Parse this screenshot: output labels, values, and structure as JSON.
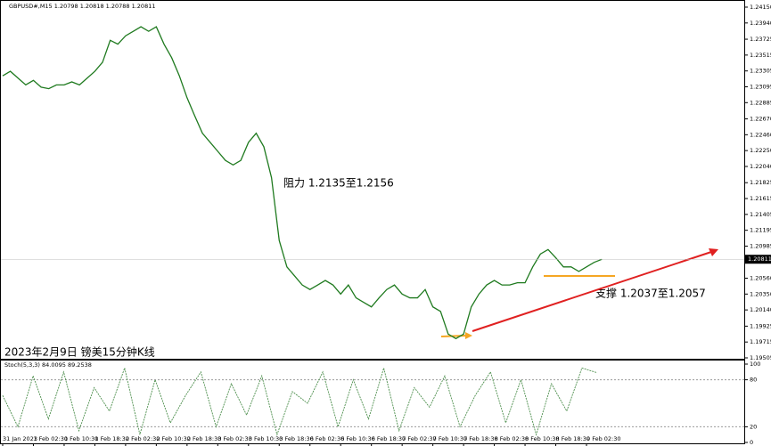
{
  "header": "GBPUSD#,M15  1.20798 1.20818 1.20788 1.20811",
  "annotations": [
    "阻力 1.2135至1.2156",
    "支撑 1.2037至1.2057",
    "2023年2月9日 镑美15分钟K线"
  ],
  "chart_data": [
    {
      "type": "line",
      "x_labels": [
        "31 Jan 2023",
        "1 Feb 02:30",
        "1 Feb 10:30",
        "1 Feb 18:30",
        "2 Feb 02:30",
        "2 Feb 10:30",
        "2 Feb 18:30",
        "3 Feb 02:30",
        "3 Feb 10:30",
        "3 Feb 18:30",
        "6 Feb 02:30",
        "6 Feb 10:30",
        "6 Feb 18:30",
        "7 Feb 02:30",
        "7 Feb 10:30",
        "7 Feb 18:30",
        "8 Feb 02:30",
        "8 Feb 10:30",
        "8 Feb 18:30",
        "9 Feb 02:30"
      ],
      "series": [
        {
          "name": "GBPUSD#",
          "color": "#1f7a1f",
          "values": [
            1.2324,
            1.233,
            1.2321,
            1.2312,
            1.2318,
            1.2309,
            1.2307,
            1.2312,
            1.2312,
            1.2316,
            1.2312,
            1.2321,
            1.233,
            1.2342,
            1.2371,
            1.2366,
            1.2377,
            1.2383,
            1.2389,
            1.2383,
            1.2389,
            1.2366,
            1.2348,
            1.2324,
            1.2295,
            1.2271,
            1.2248,
            1.2236,
            1.2224,
            1.2212,
            1.2206,
            1.2212,
            1.2236,
            1.2248,
            1.223,
            1.2189,
            1.2106,
            1.2071,
            1.2059,
            1.2047,
            1.2041,
            1.2047,
            1.2053,
            1.2047,
            1.2035,
            1.2047,
            1.203,
            1.2024,
            1.2018,
            1.203,
            1.2041,
            1.2047,
            1.2035,
            1.203,
            1.203,
            1.2041,
            1.2018,
            1.2012,
            1.1982,
            1.1976,
            1.1982,
            1.2018,
            1.2035,
            1.2047,
            1.2053,
            1.2047,
            1.2047,
            1.205,
            1.205,
            1.2071,
            1.2088,
            1.2094,
            1.2083,
            1.2071,
            1.2071,
            1.2065,
            1.2071,
            1.2077,
            1.2081
          ]
        }
      ],
      "current_price": {
        "value": 1.20811,
        "label": "1.20811"
      },
      "ylim": [
        1.19505,
        1.2415
      ],
      "yticks": [
        {
          "value": 1.2415,
          "label": "1.24150"
        },
        {
          "value": 1.2394,
          "label": "1.23940"
        },
        {
          "value": 1.23725,
          "label": "1.23725"
        },
        {
          "value": 1.23515,
          "label": "1.23515"
        },
        {
          "value": 1.23305,
          "label": "1.23305"
        },
        {
          "value": 1.23095,
          "label": "1.23095"
        },
        {
          "value": 1.22885,
          "label": "1.22885"
        },
        {
          "value": 1.2267,
          "label": "1.22670"
        },
        {
          "value": 1.2246,
          "label": "1.22460"
        },
        {
          "value": 1.2225,
          "label": "1.22250"
        },
        {
          "value": 1.2204,
          "label": "1.22040"
        },
        {
          "value": 1.21825,
          "label": "1.21825"
        },
        {
          "value": 1.21615,
          "label": "1.21615"
        },
        {
          "value": 1.21405,
          "label": "1.21405"
        },
        {
          "value": 1.21195,
          "label": "1.21195"
        },
        {
          "value": 1.20985,
          "label": "1.20985"
        },
        {
          "value": 1.2056,
          "label": "1.20560"
        },
        {
          "value": 1.2035,
          "label": "1.20350"
        },
        {
          "value": 1.2014,
          "label": "1.20140"
        },
        {
          "value": 1.19925,
          "label": "1.19925"
        },
        {
          "value": 1.19715,
          "label": "1.19715"
        },
        {
          "value": 1.19505,
          "label": "1.19505"
        }
      ]
    },
    {
      "type": "line",
      "title": "Stoch(5,3,3) 84.0095 89.2538",
      "series": [
        {
          "name": "Stoch",
          "color": "#4d8f4d",
          "values": [
            60,
            20,
            85,
            30,
            90,
            15,
            70,
            40,
            95,
            10,
            80,
            25,
            60,
            90,
            20,
            75,
            35,
            85,
            10,
            65,
            50,
            90,
            20,
            80,
            30,
            95,
            15,
            70,
            45,
            85,
            20,
            60,
            90,
            25,
            80,
            10,
            75,
            40,
            95,
            89
          ]
        }
      ],
      "ylim": [
        0,
        100
      ],
      "yticks": [
        0,
        20,
        80,
        100
      ]
    }
  ]
}
